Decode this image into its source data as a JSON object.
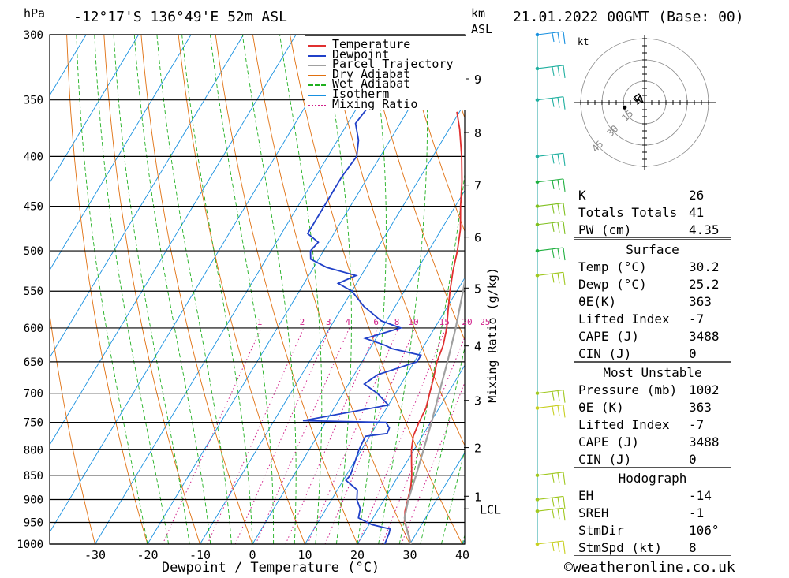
{
  "header": {
    "left_unit": "hPa",
    "location": "-12°17'S  136°49'E  52m  ASL",
    "km_label": "km",
    "asl_label": "ASL",
    "datetime": "21.01.2022  00GMT  (Base: 00)"
  },
  "footer": {
    "copyright": "©weatheronline.co.uk"
  },
  "legend": [
    {
      "label": "Temperature",
      "color": "#e03030",
      "style": "solid"
    },
    {
      "label": "Dewpoint",
      "color": "#2040c8",
      "style": "solid"
    },
    {
      "label": "Parcel Trajectory",
      "color": "#a0a0a0",
      "style": "solid"
    },
    {
      "label": "Dry Adiabat",
      "color": "#e07010",
      "style": "solid"
    },
    {
      "label": "Wet Adiabat",
      "color": "#20b020",
      "style": "dashed"
    },
    {
      "label": "Isotherm",
      "color": "#1890e0",
      "style": "solid"
    },
    {
      "label": "Mixing Ratio",
      "color": "#d0208a",
      "style": "dotted"
    }
  ],
  "chart_data": {
    "type": "line",
    "xlabel": "Dewpoint / Temperature (°C)",
    "ylabel_right": "Mixing Ratio (g/kg)",
    "x_ticks": [
      -30,
      -20,
      -10,
      0,
      10,
      20,
      30,
      40
    ],
    "x_tick_labels": [
      "-30",
      "-20",
      "-10",
      "0",
      "10",
      "20",
      "30",
      "40"
    ],
    "pressure_levels": [
      300,
      350,
      400,
      450,
      500,
      550,
      600,
      650,
      700,
      750,
      800,
      850,
      900,
      950,
      1000
    ],
    "pressure_labels": [
      "300",
      "350",
      "400",
      "450",
      "500",
      "550",
      "600",
      "650",
      "700",
      "750",
      "800",
      "850",
      "900",
      "950",
      "1000"
    ],
    "km_ticks": [
      {
        "label": "9",
        "p": 333
      },
      {
        "label": "8",
        "p": 378
      },
      {
        "label": "7",
        "p": 428
      },
      {
        "label": "6",
        "p": 484
      },
      {
        "label": "5",
        "p": 546
      },
      {
        "label": "4",
        "p": 626
      },
      {
        "label": "3",
        "p": 712
      },
      {
        "label": "2",
        "p": 796
      },
      {
        "label": "1",
        "p": 893
      }
    ],
    "lcl_label": "LCL",
    "lcl_p": 920,
    "mixing_ratio_labels": [
      "1",
      "2",
      "3",
      "4",
      "6",
      "8",
      "10",
      "15",
      "20",
      "25"
    ],
    "mixing_ratio_values": [
      1,
      2,
      3,
      4,
      6,
      8,
      10,
      15,
      20,
      25
    ],
    "series": [
      {
        "name": "Temperature",
        "color": "#e03030",
        "points": [
          [
            1000,
            30.2
          ],
          [
            975,
            28.5
          ],
          [
            950,
            26.5
          ],
          [
            925,
            25.3
          ],
          [
            900,
            24.5
          ],
          [
            875,
            23.7
          ],
          [
            850,
            22.5
          ],
          [
            825,
            21.0
          ],
          [
            800,
            19.5
          ],
          [
            775,
            18.3
          ],
          [
            750,
            17.8
          ],
          [
            725,
            17.5
          ],
          [
            700,
            16.5
          ],
          [
            675,
            15.5
          ],
          [
            650,
            14.3
          ],
          [
            625,
            13.6
          ],
          [
            600,
            12.3
          ],
          [
            575,
            10.5
          ],
          [
            550,
            8.7
          ],
          [
            525,
            7.0
          ],
          [
            500,
            5.5
          ],
          [
            475,
            3.6
          ],
          [
            450,
            1.0
          ],
          [
            425,
            -1.5
          ],
          [
            400,
            -4.5
          ],
          [
            375,
            -8.0
          ],
          [
            360,
            -10.5
          ]
        ]
      },
      {
        "name": "Dewpoint",
        "color": "#2040c8",
        "points": [
          [
            1000,
            25.2
          ],
          [
            975,
            24.8
          ],
          [
            965,
            24.5
          ],
          [
            955,
            20.5
          ],
          [
            940,
            17.2
          ],
          [
            920,
            16.5
          ],
          [
            900,
            14.8
          ],
          [
            880,
            13.8
          ],
          [
            860,
            10.5
          ],
          [
            850,
            10.8
          ],
          [
            800,
            9.5
          ],
          [
            775,
            9.2
          ],
          [
            770,
            13.0
          ],
          [
            760,
            12.8
          ],
          [
            750,
            11.5
          ],
          [
            747,
            -4.5
          ],
          [
            720,
            10.0
          ],
          [
            700,
            6.5
          ],
          [
            685,
            3.0
          ],
          [
            670,
            4.5
          ],
          [
            650,
            10.5
          ],
          [
            640,
            10.5
          ],
          [
            630,
            4.2
          ],
          [
            625,
            2.5
          ],
          [
            615,
            -2.0
          ],
          [
            600,
            3.5
          ],
          [
            590,
            -1.0
          ],
          [
            570,
            -6.0
          ],
          [
            550,
            -10.0
          ],
          [
            540,
            -13.5
          ],
          [
            530,
            -11.0
          ],
          [
            520,
            -17.5
          ],
          [
            510,
            -21.5
          ],
          [
            500,
            -22.5
          ],
          [
            490,
            -22.0
          ],
          [
            480,
            -25.0
          ],
          [
            450,
            -25.0
          ],
          [
            420,
            -25.0
          ],
          [
            400,
            -24.5
          ],
          [
            385,
            -26.0
          ],
          [
            370,
            -28.5
          ],
          [
            345,
            -27.5
          ],
          [
            340,
            -15.5
          ],
          [
            330,
            -23.0
          ],
          [
            315,
            -30.5
          ],
          [
            305,
            -22.0
          ],
          [
            300,
            -20.0
          ]
        ]
      },
      {
        "name": "Parcel Trajectory",
        "color": "#a0a0a0",
        "points": [
          [
            1000,
            30.2
          ],
          [
            960,
            27.3
          ],
          [
            940,
            26.0
          ],
          [
            900,
            24.6
          ],
          [
            850,
            23.3
          ],
          [
            800,
            21.8
          ],
          [
            750,
            20.2
          ],
          [
            700,
            18.3
          ],
          [
            650,
            16.3
          ],
          [
            600,
            14.0
          ],
          [
            550,
            11.2
          ],
          [
            500,
            8.0
          ],
          [
            450,
            4.3
          ],
          [
            400,
            -0.3
          ],
          [
            370,
            -3.6
          ]
        ]
      }
    ]
  },
  "wind_barbs": [
    {
      "p": 300,
      "color": "#1890e0"
    },
    {
      "p": 325,
      "color": "#20b0a0"
    },
    {
      "p": 350,
      "color": "#20b0a0"
    },
    {
      "p": 400,
      "color": "#20b0a0"
    },
    {
      "p": 425,
      "color": "#20b040"
    },
    {
      "p": 450,
      "color": "#80c020"
    },
    {
      "p": 470,
      "color": "#80c020"
    },
    {
      "p": 500,
      "color": "#20b040"
    },
    {
      "p": 530,
      "color": "#a0c820"
    },
    {
      "p": 700,
      "color": "#a0c820"
    },
    {
      "p": 725,
      "color": "#c8d020"
    },
    {
      "p": 850,
      "color": "#a0c820"
    },
    {
      "p": 900,
      "color": "#a0c820"
    },
    {
      "p": 925,
      "color": "#a0c820"
    },
    {
      "p": 1000,
      "color": "#c8d020"
    }
  ],
  "hodograph": {
    "unit_label": "kt",
    "ring_labels": [
      "15",
      "30",
      "45"
    ],
    "points_kt": [
      [
        -8,
        3
      ],
      [
        -6,
        1
      ],
      [
        -4,
        2
      ],
      [
        -2,
        3
      ],
      [
        -3,
        5
      ],
      [
        -5,
        2
      ],
      [
        -3,
        1
      ],
      [
        -1,
        0
      ],
      [
        -2,
        2
      ],
      [
        -4,
        6
      ],
      [
        -7,
        4
      ],
      [
        -4,
        -1
      ]
    ]
  },
  "indices": {
    "top": [
      {
        "label": "K",
        "value": "26"
      },
      {
        "label": "Totals Totals",
        "value": "41"
      },
      {
        "label": "PW (cm)",
        "value": "4.35"
      }
    ],
    "surface_title": "Surface",
    "surface": [
      {
        "label": "Temp (°C)",
        "value": "30.2"
      },
      {
        "label": "Dewp (°C)",
        "value": "25.2"
      },
      {
        "label": "θE(K)",
        "value": "363"
      },
      {
        "label": "Lifted Index",
        "value": "-7"
      },
      {
        "label": "CAPE (J)",
        "value": "3488"
      },
      {
        "label": "CIN (J)",
        "value": "0"
      }
    ],
    "mu_title": "Most Unstable",
    "mu": [
      {
        "label": "Pressure (mb)",
        "value": "1002"
      },
      {
        "label": "θE (K)",
        "value": "363"
      },
      {
        "label": "Lifted Index",
        "value": "-7"
      },
      {
        "label": "CAPE (J)",
        "value": "3488"
      },
      {
        "label": "CIN (J)",
        "value": "0"
      }
    ],
    "hodo_title": "Hodograph",
    "hodo": [
      {
        "label": "EH",
        "value": "-14"
      },
      {
        "label": "SREH",
        "value": "-1"
      },
      {
        "label": "StmDir",
        "value": "106°"
      },
      {
        "label": "StmSpd (kt)",
        "value": "8"
      }
    ]
  }
}
